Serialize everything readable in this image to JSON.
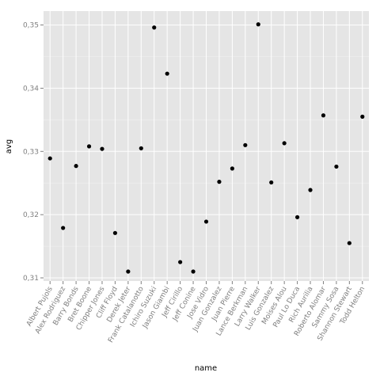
{
  "chart_data": {
    "type": "scatter",
    "xlabel": "name",
    "ylabel": "avg",
    "ylim": [
      0.3095,
      0.3522
    ],
    "y_ticks": [
      0.31,
      0.32,
      0.33,
      0.34,
      0.35
    ],
    "y_tick_labels": [
      "0,31",
      "0,32",
      "0,33",
      "0,34",
      "0,35"
    ],
    "grid": true,
    "legend": "none",
    "colors": {
      "panel": "#e5e5e5",
      "grid_major": "#ffffff",
      "grid_minor": "#f2f2f2",
      "point": "#000000"
    },
    "categories": [
      "Albert Pujols",
      "Alex Rodriguez",
      "Barry Bonds",
      "Bret Boone",
      "Chipper Jones",
      "Cliff Floyd",
      "Derek Jeter",
      "Frank Catalanotto",
      "Ichiro Suzuki",
      "Jason Giambi",
      "Jeff Cirillo",
      "Jeff Conine",
      "Jose Vidro",
      "Juan Gonzalez",
      "Juan Pierre",
      "Lance Berkman",
      "Larry Walker",
      "Luis Gonzalez",
      "Moises Alou",
      "Paul Lo Duca",
      "Rich Aurilia",
      "Roberto Alomar",
      "Sammy Sosa",
      "Shannon Stewart",
      "Todd Helton"
    ],
    "values": [
      0.3289,
      0.3179,
      0.3277,
      0.3308,
      0.3304,
      0.3171,
      0.311,
      0.3305,
      0.3496,
      0.3423,
      0.3125,
      0.311,
      0.3189,
      0.3252,
      0.3273,
      0.331,
      0.3501,
      0.3251,
      0.3313,
      0.3196,
      0.3239,
      0.3357,
      0.3276,
      0.3155,
      0.3355
    ]
  }
}
